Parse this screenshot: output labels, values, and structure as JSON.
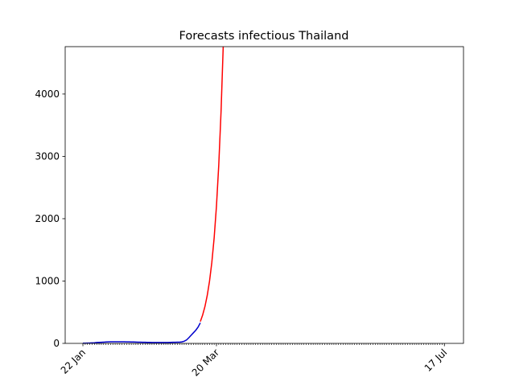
{
  "chart_data": {
    "type": "line",
    "title": "Forecasts infectious Thailand",
    "categories": [
      "22 Jan",
      null,
      null,
      null,
      null,
      null,
      null,
      null,
      null,
      null,
      null,
      null,
      null,
      null,
      null,
      null,
      null,
      null,
      null,
      null,
      null,
      null,
      null,
      null,
      null,
      null,
      null,
      null,
      null,
      null,
      null,
      null,
      null,
      null,
      null,
      null,
      null,
      null,
      null,
      null,
      null,
      null,
      null,
      null,
      null,
      null,
      null,
      null,
      null,
      null,
      null,
      null,
      null,
      null,
      null,
      null,
      null,
      null,
      "20 Mar",
      null,
      null,
      null,
      null,
      null,
      null,
      null,
      null,
      null,
      null,
      null,
      null,
      null,
      null,
      null,
      null,
      null,
      null,
      null,
      null,
      null,
      null,
      null,
      null,
      null,
      null,
      null,
      null,
      null,
      null,
      null,
      null,
      null,
      null,
      null,
      null,
      null,
      null,
      null,
      null,
      null,
      null,
      null,
      null,
      null,
      null,
      null,
      null,
      null,
      null,
      null,
      null,
      null,
      null,
      null,
      null,
      null,
      null,
      null,
      null,
      null,
      null,
      null,
      null,
      null,
      null,
      null,
      null,
      null,
      null,
      null,
      null,
      null,
      null,
      null,
      null,
      null,
      null,
      null,
      null,
      null,
      null,
      null,
      null,
      null,
      null,
      null,
      null,
      null,
      null,
      null,
      null,
      null,
      null,
      null,
      null,
      null,
      null,
      "17 Jul"
    ],
    "series": [
      {
        "color": "#0000cc",
        "values": [
          3,
          4,
          5,
          6,
          8,
          10,
          14,
          16,
          18,
          20,
          22,
          24,
          25,
          25,
          26,
          26,
          26,
          25,
          25,
          24,
          24,
          23,
          22,
          21,
          20,
          19,
          18,
          17,
          16,
          16,
          15,
          15,
          14,
          14,
          14,
          14,
          15,
          15,
          16,
          17,
          18,
          19,
          20,
          24,
          35,
          55,
          90,
          130,
          170,
          210,
          260,
          330,
          null,
          null,
          null,
          null,
          null,
          null,
          null,
          null,
          null,
          null,
          null,
          null,
          null,
          null,
          null,
          null,
          null,
          null,
          null,
          null,
          null,
          null,
          null,
          null,
          null,
          null,
          null,
          null,
          null,
          null,
          null,
          null,
          null,
          null,
          null,
          null,
          null,
          null,
          null,
          null,
          null,
          null,
          null,
          null,
          null,
          null,
          null,
          null,
          null,
          null,
          null,
          null,
          null,
          null,
          null,
          null,
          null,
          null,
          null,
          null,
          null,
          null,
          null,
          null,
          null,
          null,
          null,
          null,
          null,
          null,
          null,
          null,
          null,
          null,
          null,
          null,
          null,
          null,
          null,
          null,
          null,
          null,
          null,
          null,
          null,
          null,
          null,
          null,
          null,
          null,
          null,
          null,
          null,
          null,
          null,
          null,
          null,
          null,
          null,
          null,
          null,
          null,
          null,
          null,
          null,
          null
        ]
      },
      {
        "color": "#ff0000",
        "values": [
          null,
          null,
          null,
          null,
          null,
          null,
          null,
          null,
          null,
          null,
          null,
          null,
          null,
          null,
          null,
          null,
          null,
          null,
          null,
          null,
          null,
          null,
          null,
          null,
          null,
          null,
          null,
          null,
          null,
          null,
          null,
          null,
          null,
          null,
          null,
          null,
          null,
          null,
          null,
          null,
          null,
          null,
          null,
          null,
          null,
          null,
          null,
          null,
          null,
          null,
          null,
          350,
          455,
          590,
          770,
          1000,
          1300,
          1690,
          2200,
          2860,
          3720,
          4830,
          null,
          null,
          null,
          null,
          null,
          null,
          null,
          null,
          null,
          null,
          null,
          null,
          null,
          null,
          null,
          null,
          null,
          null,
          null,
          null,
          null,
          null,
          null,
          null,
          null,
          null,
          null,
          null,
          null,
          null,
          null,
          null,
          null,
          null,
          null,
          null,
          null,
          null,
          null,
          null,
          null,
          null,
          null,
          null,
          null,
          null,
          null,
          null,
          null,
          null,
          null,
          null,
          null,
          null,
          null,
          null,
          null,
          null,
          null,
          null,
          null,
          null,
          null,
          null,
          null,
          null,
          null,
          null,
          null,
          null,
          null,
          null,
          null,
          null,
          null,
          null,
          null,
          null,
          null,
          null,
          null,
          null,
          null,
          null,
          null,
          null,
          null,
          null,
          null,
          null,
          null,
          null,
          null,
          null,
          null,
          null
        ]
      }
    ],
    "xlim": [
      -7.7,
      165.3
    ],
    "ylim": [
      0,
      4760
    ],
    "yticks": [
      0,
      1000,
      2000,
      3000,
      4000
    ],
    "grid": false
  }
}
